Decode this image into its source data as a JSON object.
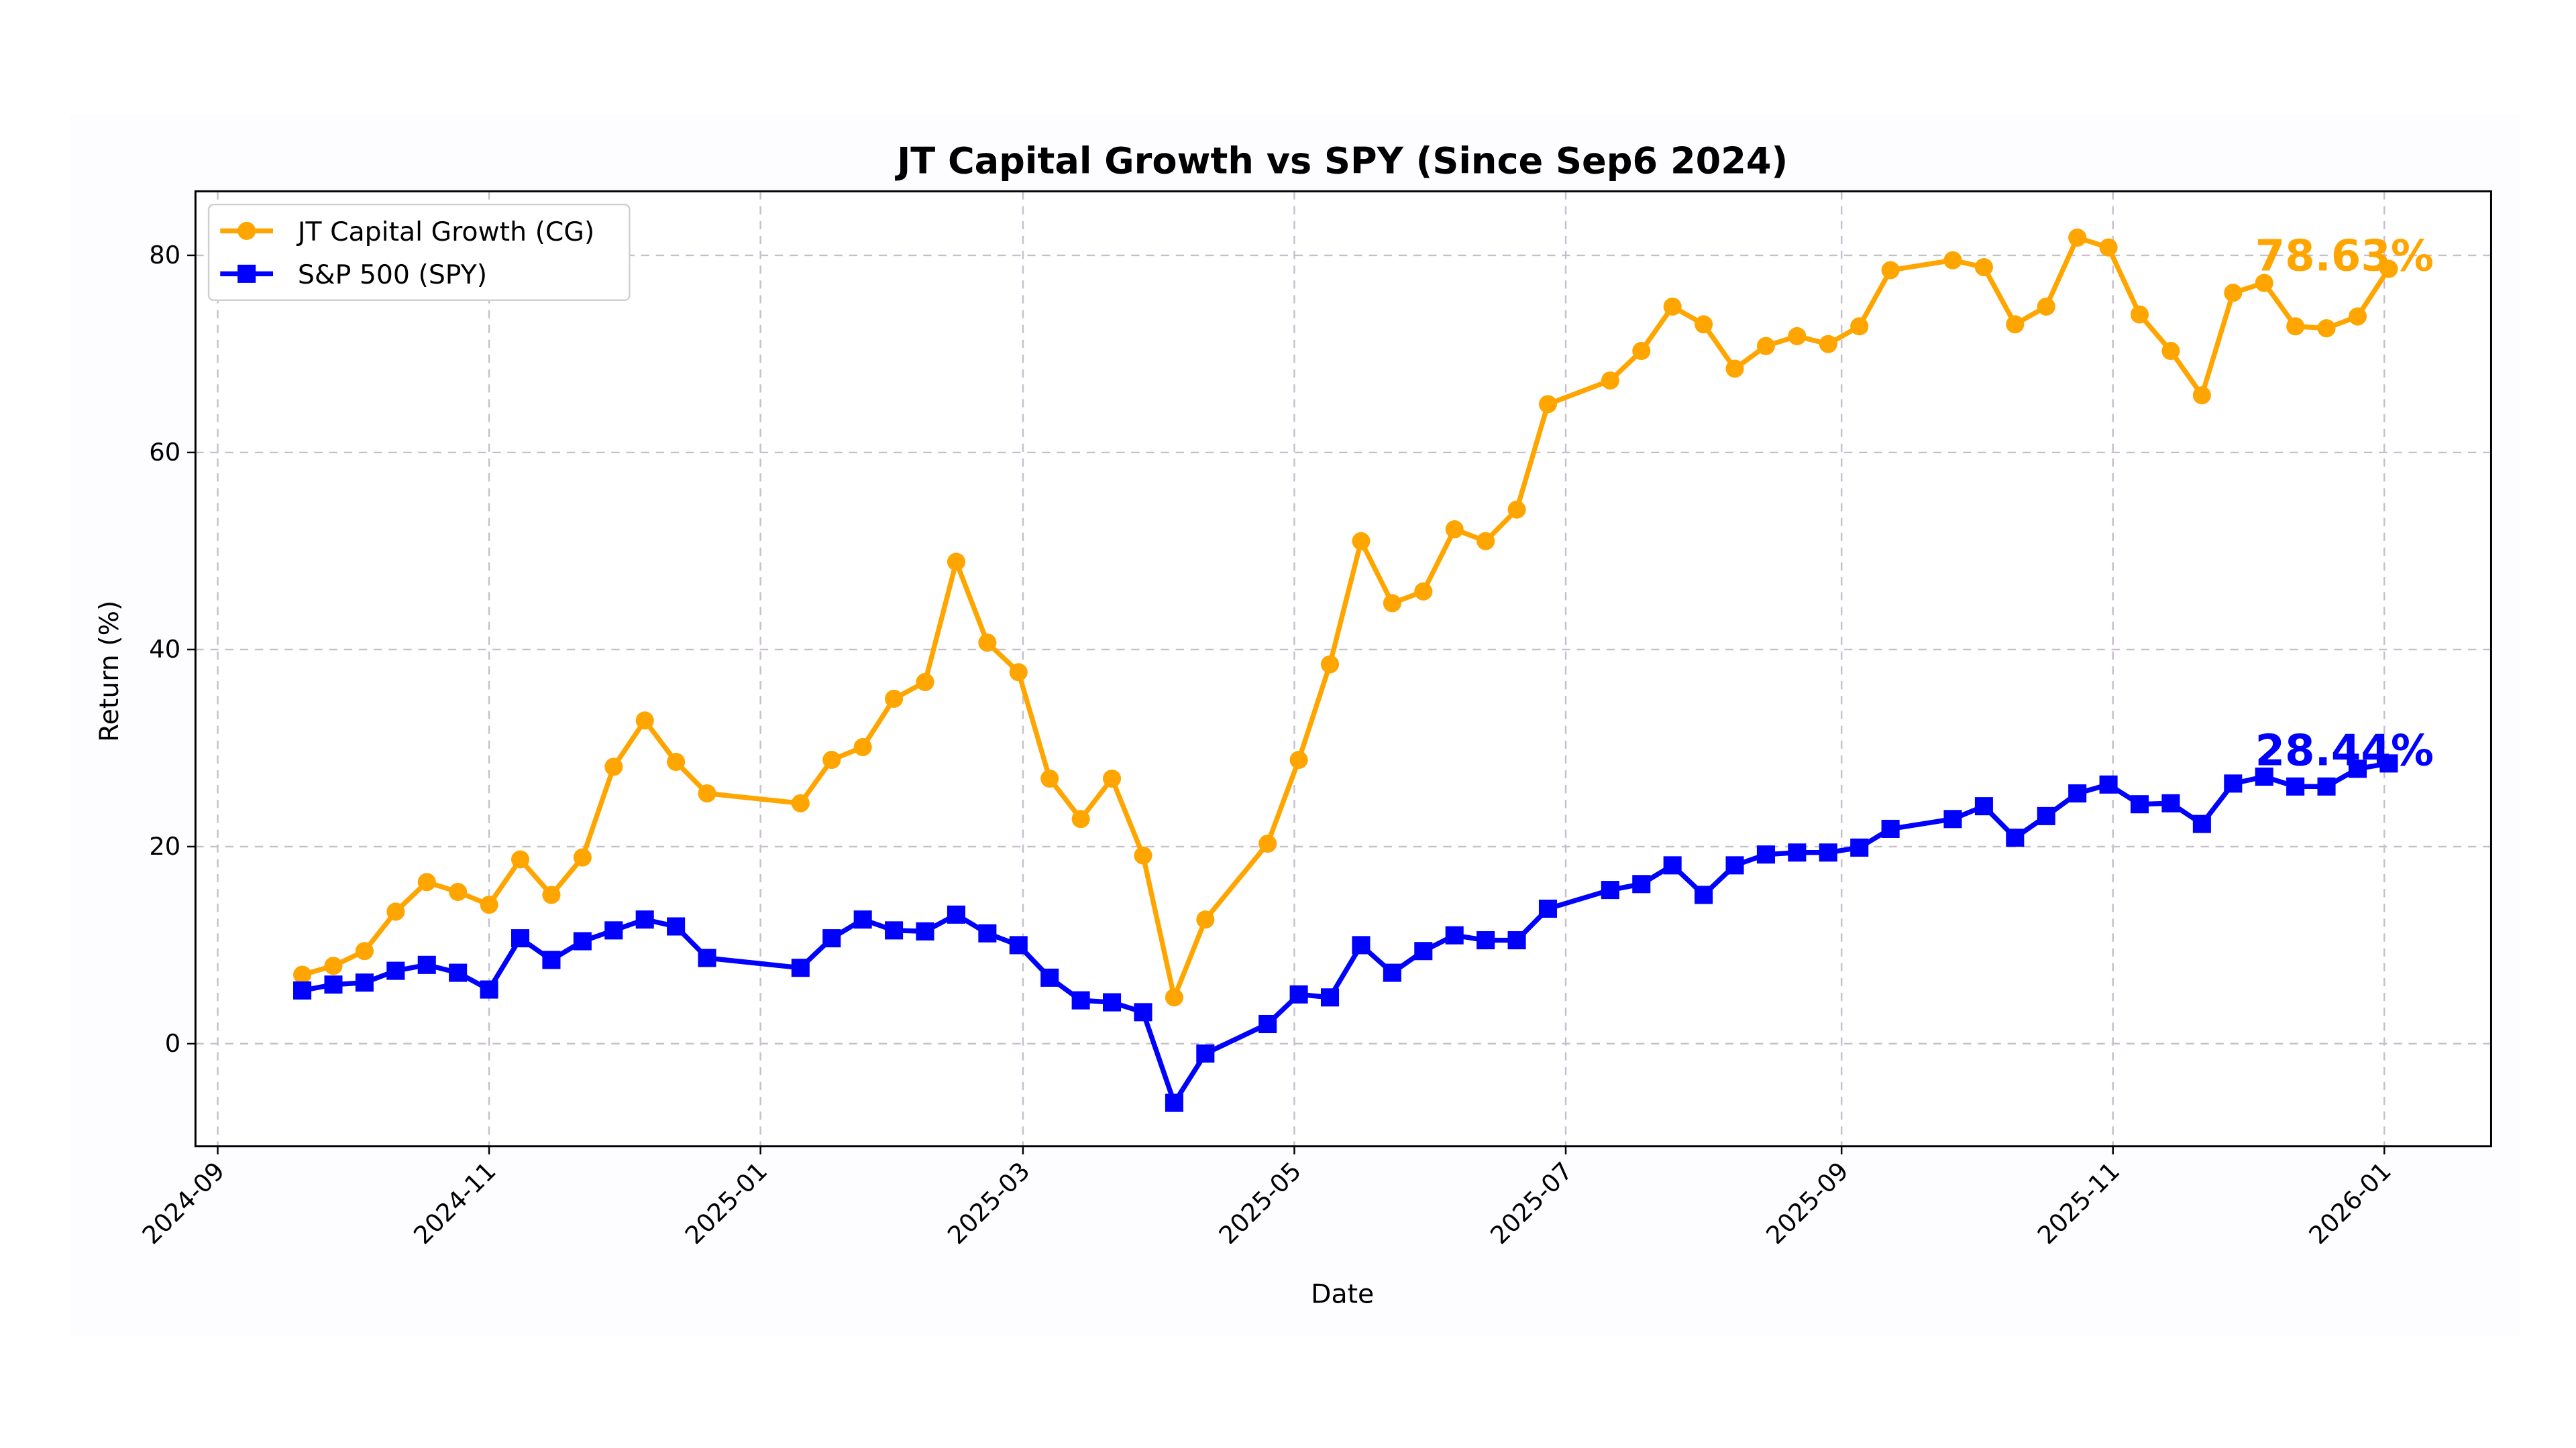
{
  "chart_data": {
    "type": "line",
    "title": "JT Capital Growth vs SPY (Since Sep6 2024)",
    "xlabel": "Date",
    "ylabel": "Return (%)",
    "xlim": [
      "2024-08-27",
      "2026-01-25"
    ],
    "ylim": [
      -10.4,
      86.5
    ],
    "x_ticks": [
      "2024-09",
      "2024-11",
      "2025-01",
      "2025-03",
      "2025-05",
      "2025-07",
      "2025-09",
      "2025-11",
      "2026-01"
    ],
    "y_ticks": [
      0,
      20,
      40,
      60,
      80
    ],
    "grid": true,
    "legend_placement": "top-left",
    "x": [
      "2024-09-20",
      "2024-09-27",
      "2024-10-04",
      "2024-10-11",
      "2024-10-18",
      "2024-10-25",
      "2024-11-01",
      "2024-11-08",
      "2024-11-15",
      "2024-11-22",
      "2024-11-29",
      "2024-12-06",
      "2024-12-13",
      "2024-12-20",
      "2025-01-10",
      "2025-01-17",
      "2025-01-24",
      "2025-01-31",
      "2025-02-07",
      "2025-02-14",
      "2025-02-21",
      "2025-02-28",
      "2025-03-07",
      "2025-03-14",
      "2025-03-21",
      "2025-03-28",
      "2025-04-04",
      "2025-04-11",
      "2025-04-25",
      "2025-05-02",
      "2025-05-09",
      "2025-05-16",
      "2025-05-23",
      "2025-05-30",
      "2025-06-06",
      "2025-06-13",
      "2025-06-20",
      "2025-06-27",
      "2025-07-11",
      "2025-07-18",
      "2025-07-25",
      "2025-08-01",
      "2025-08-08",
      "2025-08-15",
      "2025-08-22",
      "2025-08-29",
      "2025-09-05",
      "2025-09-12",
      "2025-09-26",
      "2025-10-03",
      "2025-10-10",
      "2025-10-17",
      "2025-10-24",
      "2025-10-31",
      "2025-11-07",
      "2025-11-14",
      "2025-11-21",
      "2025-11-28",
      "2025-12-05",
      "2025-12-12",
      "2025-12-19",
      "2025-12-26",
      "2026-01-02"
    ],
    "series": [
      {
        "name": "JT Capital Growth (CG)",
        "color": "#FFA500",
        "marker": "circle",
        "values": [
          7.0,
          7.9,
          9.4,
          13.4,
          16.4,
          15.4,
          14.1,
          18.7,
          15.1,
          18.9,
          28.1,
          32.8,
          28.6,
          25.4,
          24.4,
          28.8,
          30.1,
          35.0,
          36.7,
          48.9,
          40.7,
          37.7,
          26.9,
          22.8,
          26.9,
          19.1,
          4.7,
          12.6,
          20.3,
          28.8,
          38.5,
          51.0,
          44.7,
          45.9,
          52.2,
          51.0,
          54.2,
          64.9,
          67.3,
          70.3,
          74.8,
          73.0,
          68.5,
          70.8,
          71.8,
          71.0,
          72.8,
          78.5,
          79.5,
          78.8,
          73.0,
          74.8,
          81.8,
          80.8,
          74.0,
          70.3,
          65.8,
          76.2,
          77.2,
          72.8,
          72.6,
          73.8,
          78.63
        ],
        "end_label": "78.63%"
      },
      {
        "name": "S&P 500 (SPY)",
        "color": "#0000FF",
        "marker": "square",
        "values": [
          5.4,
          6.0,
          6.2,
          7.4,
          8.0,
          7.2,
          5.5,
          10.7,
          8.5,
          10.4,
          11.5,
          12.6,
          11.9,
          8.7,
          7.7,
          10.7,
          12.6,
          11.5,
          11.4,
          13.1,
          11.2,
          10.0,
          6.7,
          4.4,
          4.2,
          3.2,
          -6.0,
          -1.0,
          2.0,
          5.0,
          4.7,
          10.0,
          7.2,
          9.4,
          11.0,
          10.5,
          10.5,
          13.7,
          15.6,
          16.2,
          18.1,
          15.1,
          18.1,
          19.2,
          19.4,
          19.4,
          19.9,
          21.8,
          22.8,
          24.1,
          20.9,
          23.1,
          25.4,
          26.3,
          24.3,
          24.4,
          22.3,
          26.4,
          27.1,
          26.1,
          26.1,
          27.9,
          28.44
        ],
        "end_label": "28.44%"
      }
    ]
  }
}
